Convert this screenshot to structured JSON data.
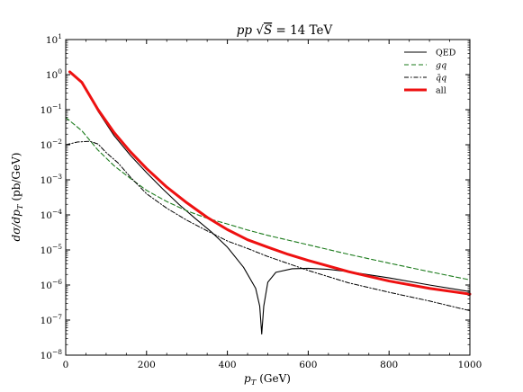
{
  "chart_data": {
    "type": "line",
    "title": "pp √S = 14 TeV",
    "xlabel": "p_T (GeV)",
    "ylabel": "dσ/dp_T (pb/GeV)",
    "xlim": [
      0,
      1000
    ],
    "ylim": [
      1e-08,
      10
    ],
    "yscale": "log",
    "grid": false,
    "legend_position": "top-right",
    "x_ticks": [
      "0",
      "200",
      "400",
      "600",
      "800",
      "1000"
    ],
    "x_tick_values": [
      0,
      200,
      400,
      600,
      800,
      1000
    ],
    "y_ticks": [
      "10^-8",
      "10^-7",
      "10^-6",
      "10^-5",
      "10^-4",
      "10^-3",
      "10^-2",
      "10^-1",
      "10^0",
      "10^1"
    ],
    "y_tick_exponents": [
      -8,
      -7,
      -6,
      -5,
      -4,
      -3,
      -2,
      -1,
      0,
      1
    ],
    "series": [
      {
        "name": "QED",
        "color": "#000000",
        "style": "solid",
        "width": 1.1,
        "x": [
          10,
          40,
          80,
          120,
          160,
          200,
          240,
          280,
          320,
          360,
          400,
          440,
          470,
          480,
          485,
          490,
          500,
          520,
          560,
          600,
          650,
          700,
          800,
          900,
          1000
        ],
        "y": [
          1.2,
          0.6,
          0.09,
          0.018,
          0.005,
          0.0016,
          0.00055,
          0.0002,
          8e-05,
          3.3e-05,
          1.2e-05,
          3.2e-06,
          8e-07,
          2.5e-07,
          4e-08,
          2.5e-07,
          1.2e-06,
          2.3e-06,
          2.9e-06,
          3e-06,
          2.8e-06,
          2.4e-06,
          1.6e-06,
          1e-06,
          6.5e-07
        ]
      },
      {
        "name": "gq",
        "color": "#1a7a1a",
        "style": "dashed",
        "width": 1.1,
        "x": [
          0,
          40,
          80,
          120,
          160,
          200,
          250,
          300,
          350,
          400,
          450,
          500,
          600,
          700,
          800,
          900,
          1000
        ],
        "y": [
          0.06,
          0.025,
          0.007,
          0.0025,
          0.0011,
          0.0005,
          0.00024,
          0.00013,
          8e-05,
          5.5e-05,
          3.7e-05,
          2.6e-05,
          1.4e-05,
          7.5e-06,
          4.2e-06,
          2.4e-06,
          1.4e-06
        ]
      },
      {
        "name": "q̄q",
        "color": "#000000",
        "style": "dashdot",
        "width": 1.0,
        "x": [
          0,
          30,
          60,
          80,
          100,
          130,
          160,
          200,
          250,
          300,
          350,
          400,
          450,
          500,
          600,
          700,
          800,
          900,
          1000
        ],
        "y": [
          0.01,
          0.012,
          0.0125,
          0.0105,
          0.006,
          0.003,
          0.0012,
          0.0004,
          0.000155,
          7e-05,
          3.5e-05,
          1.8e-05,
          1.1e-05,
          6.5e-06,
          2.6e-06,
          1.15e-06,
          6.2e-07,
          3.5e-07,
          1.85e-07
        ]
      },
      {
        "name": "all",
        "color": "#ee1111",
        "style": "solid",
        "width": 3.0,
        "x": [
          10,
          40,
          80,
          120,
          160,
          200,
          250,
          300,
          350,
          400,
          450,
          500,
          550,
          600,
          700,
          800,
          900,
          1000
        ],
        "y": [
          1.2,
          0.6,
          0.1,
          0.022,
          0.0063,
          0.0021,
          0.00062,
          0.00022,
          8.5e-05,
          3.8e-05,
          1.95e-05,
          1.2e-05,
          7.5e-06,
          5e-06,
          2.4e-06,
          1.3e-06,
          8e-07,
          5.5e-07
        ]
      }
    ]
  }
}
